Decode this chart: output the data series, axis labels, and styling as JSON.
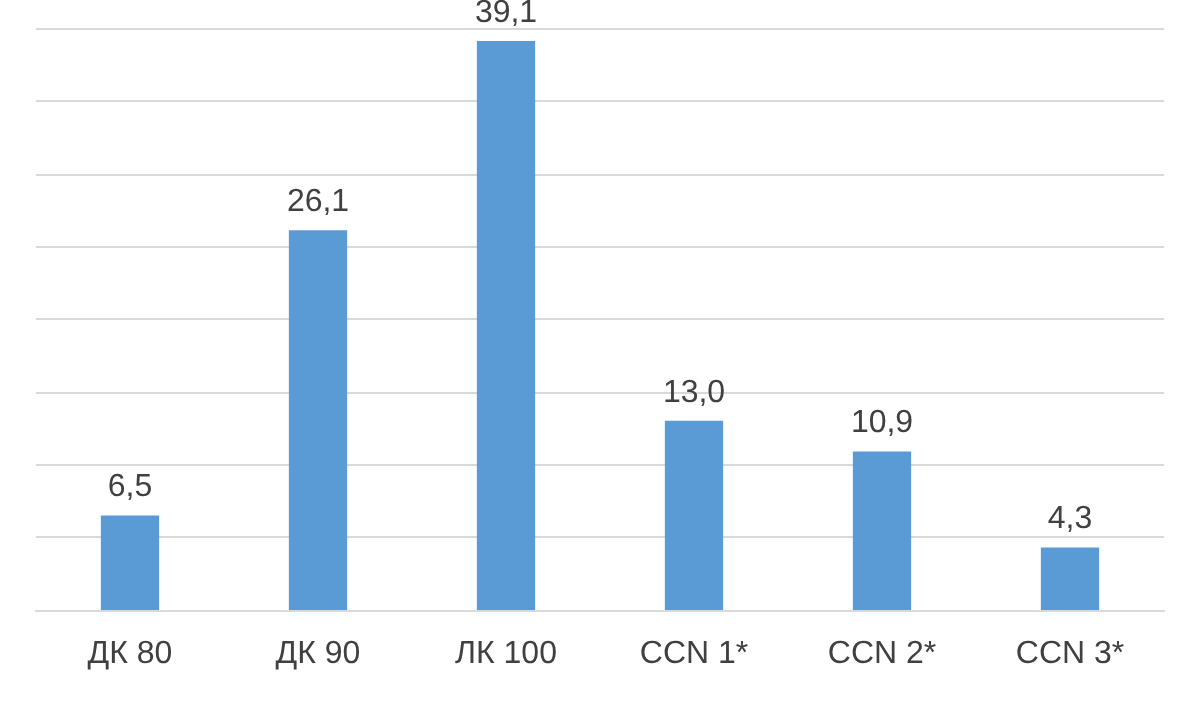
{
  "chart_data": {
    "type": "bar",
    "categories": [
      "ДК 80",
      "ДК 90",
      "ЛК 100",
      "CCN 1*",
      "CCN 2*",
      "CCN 3*"
    ],
    "values": [
      6.5,
      26.1,
      39.1,
      13.0,
      10.9,
      4.3
    ],
    "value_labels": [
      "6,5",
      "26,1",
      "39,1",
      "13,0",
      "10,9",
      "4,3"
    ],
    "color": "#5b9bd5",
    "ylim": [
      0,
      40
    ],
    "yticks": [
      0,
      5,
      10,
      15,
      20,
      25,
      30,
      35,
      40
    ],
    "grid": "y",
    "tick_labels": "x"
  }
}
